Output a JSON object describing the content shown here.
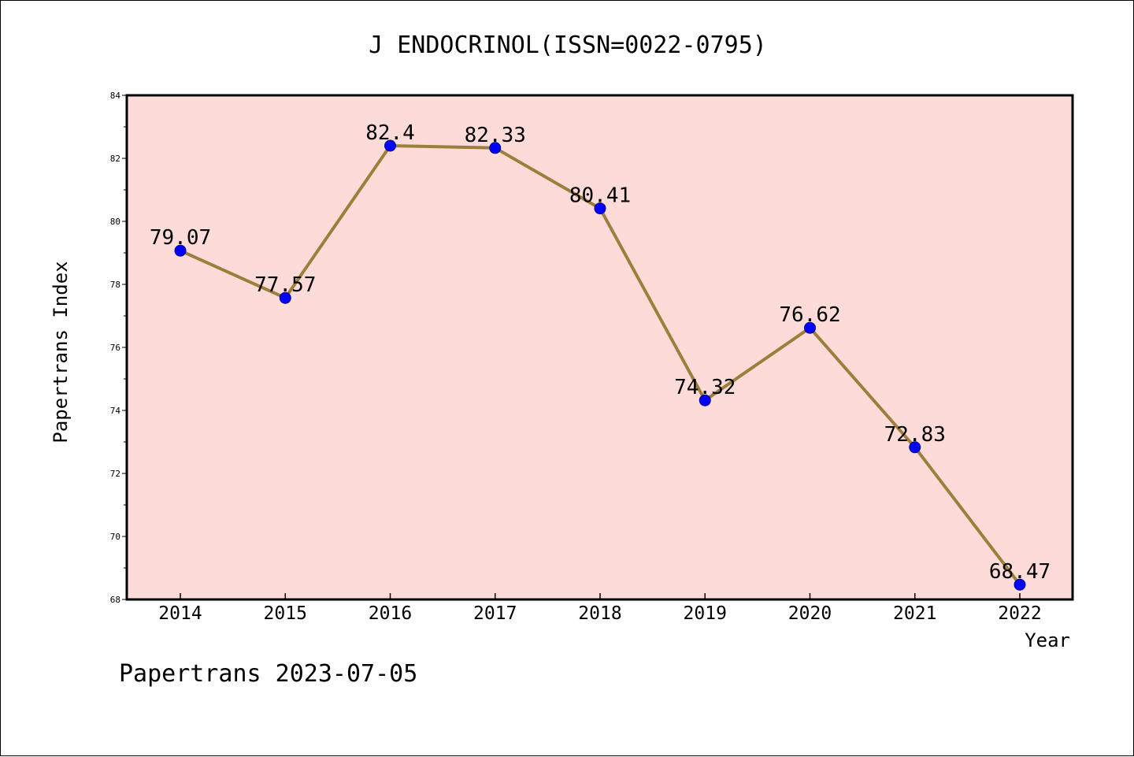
{
  "chart_data": {
    "type": "line",
    "title": "J ENDOCRINOL(ISSN=0022-0795)",
    "xlabel": "Year",
    "ylabel": "Papertrans Index",
    "categories": [
      "2014",
      "2015",
      "2016",
      "2017",
      "2018",
      "2019",
      "2020",
      "2021",
      "2022"
    ],
    "series": [
      {
        "values": [
          79.07,
          77.57,
          82.4,
          82.33,
          80.41,
          74.32,
          76.62,
          72.83,
          68.47
        ],
        "data_labels": [
          "79.07",
          "77.57",
          "82.4",
          "82.33",
          "80.41",
          "74.32",
          "76.62",
          "72.83",
          "68.47"
        ]
      }
    ],
    "ylim": [
      68,
      84
    ],
    "yticks": [
      "68",
      "70",
      "72",
      "74",
      "76",
      "78",
      "80",
      "82",
      "84"
    ],
    "grid": false,
    "legend": "none",
    "colors": {
      "plot_background": "#fddbd9",
      "line": "#9b7f3b",
      "marker_fill": "#0000ff",
      "marker_edge": "#00008b"
    },
    "footer": "Papertrans 2023-07-05"
  }
}
